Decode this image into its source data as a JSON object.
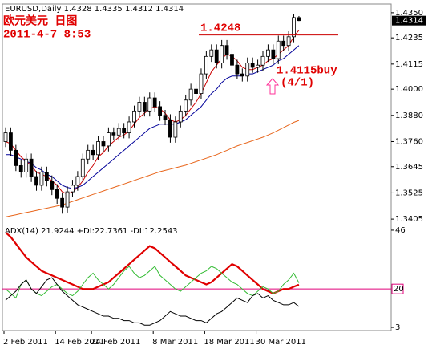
{
  "header": {
    "symbol_line": "EURUSD,Daily 1.4328 1.4335 1.4312 1.4314"
  },
  "chart_data": [
    {
      "type": "candlestick",
      "categories": [
        "2 Feb 2011",
        null,
        null,
        null,
        null,
        null,
        null,
        null,
        null,
        null,
        "14 Feb 2011",
        null,
        null,
        null,
        null,
        null,
        null,
        "24 Feb 2011",
        null,
        null,
        null,
        null,
        null,
        null,
        null,
        null,
        null,
        null,
        null,
        "8 Mar 2011",
        null,
        null,
        null,
        null,
        null,
        null,
        null,
        null,
        null,
        "18 Mar 2011",
        null,
        null,
        null,
        null,
        null,
        null,
        null,
        null,
        null,
        "30 Mar 2011",
        null,
        null,
        null,
        null,
        null,
        null,
        null,
        null
      ],
      "open": [
        1.376,
        1.38,
        1.372,
        1.365,
        1.362,
        1.368,
        1.36,
        1.356,
        1.362,
        1.358,
        1.354,
        1.35,
        1.346,
        1.353,
        1.356,
        1.36,
        1.368,
        1.372,
        1.37,
        1.376,
        1.374,
        1.38,
        1.379,
        1.382,
        1.38,
        1.385,
        1.39,
        1.394,
        1.39,
        1.396,
        1.392,
        1.388,
        1.386,
        1.378,
        1.385,
        1.39,
        1.395,
        1.4,
        1.398,
        1.407,
        1.415,
        1.418,
        1.412,
        1.42,
        1.416,
        1.411,
        1.407,
        1.406,
        1.412,
        1.41,
        1.411,
        1.415,
        1.418,
        1.414,
        1.422,
        1.42,
        1.424,
        1.4328
      ],
      "high": [
        1.3825,
        1.3825,
        1.3745,
        1.3675,
        1.3705,
        1.3705,
        1.3625,
        1.3645,
        1.3645,
        1.3605,
        1.3565,
        1.3525,
        1.3555,
        1.3585,
        1.3625,
        1.3705,
        1.3745,
        1.3745,
        1.3785,
        1.3785,
        1.3825,
        1.3825,
        1.3845,
        1.3845,
        1.3875,
        1.3925,
        1.3965,
        1.3965,
        1.3985,
        1.3985,
        1.3945,
        1.3905,
        1.3885,
        1.3875,
        1.3925,
        1.3975,
        1.4025,
        1.4025,
        1.4095,
        1.4175,
        1.4205,
        1.4205,
        1.4225,
        1.4225,
        1.4185,
        1.4135,
        1.4095,
        1.4145,
        1.4145,
        1.4135,
        1.4175,
        1.4205,
        1.4205,
        1.4245,
        1.4245,
        1.4265,
        1.4345,
        1.4335
      ],
      "low": [
        1.3735,
        1.3695,
        1.3625,
        1.3595,
        1.3595,
        1.3575,
        1.3535,
        1.3535,
        1.3555,
        1.3515,
        1.3475,
        1.343,
        1.3435,
        1.3505,
        1.3535,
        1.3575,
        1.3655,
        1.3675,
        1.3675,
        1.3715,
        1.3715,
        1.3765,
        1.3765,
        1.3775,
        1.3775,
        1.3825,
        1.3875,
        1.3875,
        1.3875,
        1.3895,
        1.3855,
        1.3835,
        1.3755,
        1.3755,
        1.3825,
        1.3875,
        1.3925,
        1.3955,
        1.3955,
        1.4045,
        1.4125,
        1.4095,
        1.4095,
        1.4135,
        1.4085,
        1.4045,
        1.4035,
        1.4035,
        1.4075,
        1.4075,
        1.4085,
        1.4125,
        1.4115,
        1.4115,
        1.4175,
        1.4175,
        1.4215,
        1.4312
      ],
      "close": [
        1.38,
        1.372,
        1.365,
        1.362,
        1.368,
        1.36,
        1.356,
        1.362,
        1.358,
        1.354,
        1.35,
        1.346,
        1.353,
        1.356,
        1.36,
        1.368,
        1.372,
        1.37,
        1.376,
        1.374,
        1.38,
        1.379,
        1.382,
        1.38,
        1.385,
        1.39,
        1.394,
        1.39,
        1.396,
        1.392,
        1.388,
        1.386,
        1.378,
        1.385,
        1.39,
        1.395,
        1.4,
        1.398,
        1.407,
        1.415,
        1.418,
        1.412,
        1.42,
        1.416,
        1.411,
        1.407,
        1.406,
        1.412,
        1.41,
        1.411,
        1.415,
        1.418,
        1.414,
        1.422,
        1.42,
        1.424,
        1.4328,
        1.4314
      ],
      "series": [
        {
          "color": "#cc0000",
          "values": [
            1.376,
            1.375,
            1.372,
            1.369,
            1.367,
            1.365,
            1.362,
            1.361,
            1.36,
            1.358,
            1.356,
            1.353,
            1.352,
            1.353,
            1.355,
            1.358,
            1.362,
            1.365,
            1.369,
            1.371,
            1.374,
            1.376,
            1.378,
            1.379,
            1.381,
            1.384,
            1.387,
            1.389,
            1.391,
            1.392,
            1.391,
            1.389,
            1.386,
            1.385,
            1.386,
            1.388,
            1.391,
            1.394,
            1.398,
            1.403,
            1.408,
            1.411,
            1.414,
            1.416,
            1.415,
            1.413,
            1.41,
            1.409,
            1.409,
            1.41,
            1.411,
            1.413,
            1.414,
            1.416,
            1.418,
            1.42,
            1.424,
            1.427
          ]
        },
        {
          "color": "#000099",
          "values": [
            1.37,
            1.37,
            1.369,
            1.368,
            1.367,
            1.366,
            1.364,
            1.363,
            1.361,
            1.36,
            1.358,
            1.356,
            1.355,
            1.3545,
            1.355,
            1.356,
            1.358,
            1.36,
            1.362,
            1.364,
            1.366,
            1.368,
            1.37,
            1.372,
            1.374,
            1.376,
            1.378,
            1.38,
            1.382,
            1.383,
            1.384,
            1.384,
            1.384,
            1.384,
            1.385,
            1.386,
            1.388,
            1.39,
            1.392,
            1.395,
            1.398,
            1.4,
            1.403,
            1.405,
            1.406,
            1.406,
            1.406,
            1.407,
            1.407,
            1.408,
            1.409,
            1.41,
            1.411,
            1.413,
            1.414,
            1.416,
            1.418,
            1.42
          ]
        },
        {
          "color": "#e8661c",
          "values": [
            1.3415,
            1.342,
            1.3425,
            1.343,
            1.3435,
            1.344,
            1.3445,
            1.345,
            1.3455,
            1.346,
            1.3465,
            1.347,
            1.3478,
            1.3486,
            1.3494,
            1.3502,
            1.351,
            1.3518,
            1.3526,
            1.3534,
            1.3542,
            1.355,
            1.3558,
            1.3566,
            1.3574,
            1.3582,
            1.359,
            1.3598,
            1.3606,
            1.3614,
            1.3622,
            1.3628,
            1.3634,
            1.364,
            1.3646,
            1.3652,
            1.366,
            1.3668,
            1.3676,
            1.3684,
            1.3692,
            1.37,
            1.371,
            1.372,
            1.373,
            1.374,
            1.3748,
            1.3756,
            1.3764,
            1.3772,
            1.378,
            1.379,
            1.38,
            1.3812,
            1.3824,
            1.3836,
            1.3848,
            1.3857
          ]
        }
      ],
      "ylim": [
        1.3387,
        1.439
      ],
      "yticks": [
        {
          "value": 1.435,
          "label": "1.4350"
        },
        {
          "value": 1.4235,
          "label": "1.4235"
        },
        {
          "value": 1.4115,
          "label": "1.4115"
        },
        {
          "value": 1.4,
          "label": "1.4000"
        },
        {
          "value": 1.388,
          "label": "1.3880"
        },
        {
          "value": 1.376,
          "label": "1.3760"
        },
        {
          "value": 1.3645,
          "label": "1.3645"
        },
        {
          "value": 1.3525,
          "label": "1.3525"
        },
        {
          "value": 1.3405,
          "label": "1.3405"
        }
      ],
      "current_price": {
        "value": 1.4314,
        "label": "1.4314"
      },
      "annotations": {
        "title_cn": "欧元美元 日图",
        "timestamp": "2011-4-7 8:53",
        "resistance": 1.4248,
        "buy_label": "1.4115buy",
        "buy_date": "(4/1)"
      }
    },
    {
      "type": "line",
      "title": "ADX(14) 21.9244 +DI:22.7361 -DI:12.2543",
      "series": [
        {
          "color": "#e00000",
          "values": [
            45,
            43,
            40,
            37,
            34,
            32,
            30,
            28,
            27,
            26,
            25,
            24,
            23,
            22,
            21,
            20,
            20,
            20,
            21,
            22,
            23,
            25,
            27,
            29,
            31,
            33,
            35,
            37,
            39,
            38,
            36,
            34,
            32,
            30,
            28,
            26,
            25,
            24,
            23,
            22,
            23,
            25,
            27,
            29,
            31,
            30,
            28,
            26,
            24,
            22,
            20,
            19,
            18,
            19,
            20,
            20,
            21,
            21.9244
          ]
        },
        {
          "color": "#33bb33",
          "values": [
            20,
            18,
            16,
            22,
            24,
            20,
            18,
            17,
            19,
            21,
            22,
            20,
            18,
            17,
            19,
            22,
            25,
            27,
            24,
            22,
            20,
            22,
            25,
            28,
            30,
            27,
            25,
            26,
            28,
            30,
            26,
            24,
            22,
            20,
            19,
            21,
            23,
            25,
            27,
            28,
            30,
            29,
            27,
            25,
            23,
            22,
            20,
            18,
            17,
            19,
            21,
            20,
            18,
            19,
            22,
            24,
            27,
            22.7361
          ]
        },
        {
          "color": "#000000",
          "values": [
            15,
            17,
            19,
            22,
            24,
            20,
            18,
            21,
            24,
            25,
            22,
            19,
            17,
            15,
            13,
            12,
            11,
            10,
            9,
            8,
            8,
            7,
            7,
            6,
            6,
            5,
            5,
            4,
            4,
            5,
            6,
            8,
            10,
            9,
            8,
            8,
            7,
            6,
            6,
            5,
            7,
            9,
            10,
            12,
            14,
            16,
            15,
            14,
            17,
            18,
            16,
            17,
            15,
            14,
            13,
            13,
            14,
            12.2543
          ]
        }
      ],
      "ylim": [
        1.6,
        47.4
      ],
      "yticks": [
        46,
        3
      ],
      "level": 20,
      "level_color": "#e0007a"
    }
  ]
}
